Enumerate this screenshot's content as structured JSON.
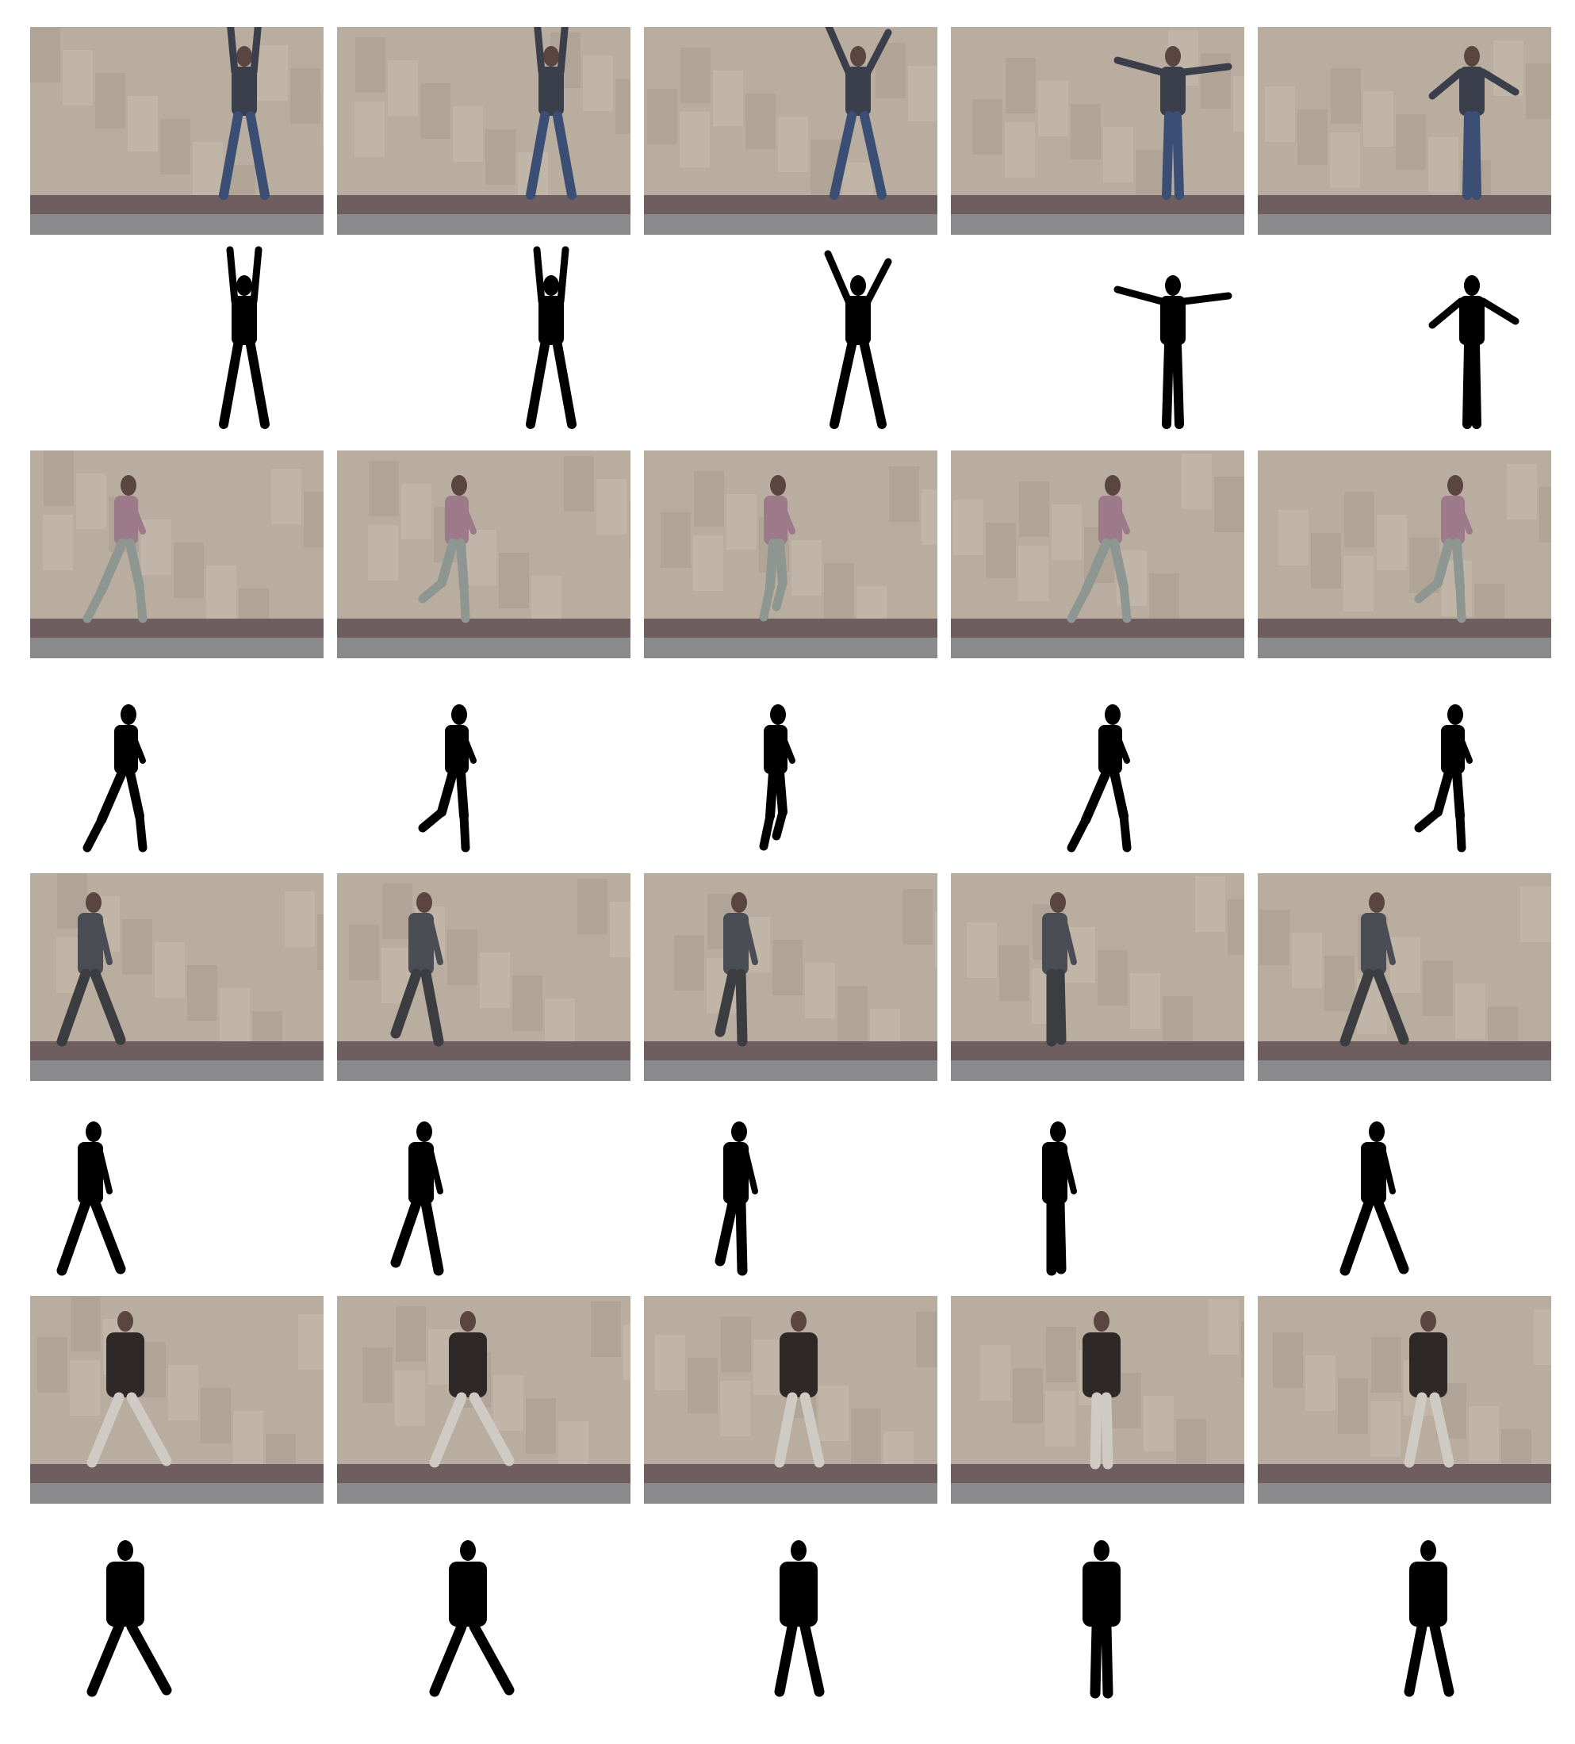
{
  "figure": {
    "rows": [
      {
        "action": "jumping-jack",
        "frames": [
          {
            "pose": "arms-up-legs-apart"
          },
          {
            "pose": "arms-up-legs-apart"
          },
          {
            "pose": "arms-up-wide"
          },
          {
            "pose": "arms-horizontal-legs-together"
          },
          {
            "pose": "arms-low-diagonal-legs-together"
          }
        ]
      },
      {
        "action": "running",
        "frames": [
          {
            "pose": "stride"
          },
          {
            "pose": "back-leg-kick"
          },
          {
            "pose": "knees-together"
          },
          {
            "pose": "stride"
          },
          {
            "pose": "back-leg-kick"
          }
        ]
      },
      {
        "action": "walking",
        "frames": [
          {
            "pose": "wide-stride"
          },
          {
            "pose": "stride"
          },
          {
            "pose": "legs-crossing"
          },
          {
            "pose": "standing"
          },
          {
            "pose": "wide-stride"
          }
        ]
      },
      {
        "action": "side-step",
        "frames": [
          {
            "pose": "legs-apart"
          },
          {
            "pose": "legs-apart"
          },
          {
            "pose": "legs-slightly-apart"
          },
          {
            "pose": "standing"
          },
          {
            "pose": "legs-slightly-apart"
          }
        ]
      }
    ],
    "colors": {
      "wall": "#b8ad9f",
      "wall_light": "#c9bfb2",
      "wall_dark": "#a69a8b",
      "ground": "#6e5e60",
      "curb": "#8a8a8c",
      "silhouette": "#000000",
      "background": "#ffffff"
    }
  }
}
